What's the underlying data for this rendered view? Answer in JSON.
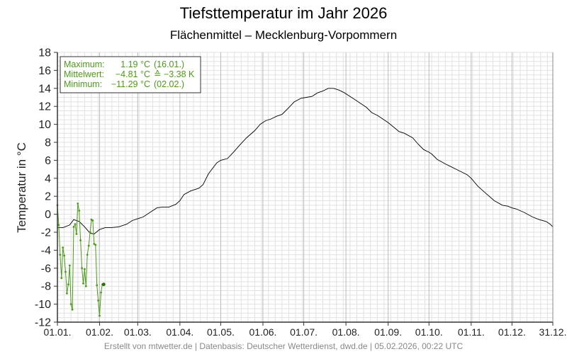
{
  "header": {
    "title": "Tiefsttemperatur im Jahr 2026",
    "subtitle": "Flächenmittel – Mecklenburg-Vorpommern"
  },
  "footer": {
    "text": "Erstellt von mtwetter.de | Datenbasis: Deutscher Wetterdienst, dwd.de | 05.02.2026, 00:22 UTC"
  },
  "stats": {
    "max_label": "Maximum:",
    "max_value": "1.19 °C",
    "max_date": "(16.01.)",
    "mean_label": "Mittelwert:",
    "mean_value": "−4.81 °C",
    "mean_anomaly": "≙ −3.38 K",
    "min_label": "Minimum:",
    "min_value": "−11.29 °C",
    "min_date": "(02.02.)"
  },
  "colors": {
    "series_2026": "#4c9a1a",
    "climatology": "#000000",
    "grid_minor": "#e2e2e2",
    "grid_major": "#bbbbbb"
  },
  "chart_data": {
    "type": "line",
    "title": "Tiefsttemperatur im Jahr 2026",
    "subtitle": "Flächenmittel – Mecklenburg-Vorpommern",
    "ylabel": "Temperatur in °C",
    "xlabel": "",
    "ylim": [
      -12,
      18
    ],
    "yticks": [
      18,
      16,
      14,
      12,
      10,
      8,
      6,
      4,
      2,
      0,
      -2,
      -4,
      -6,
      -8,
      -10,
      -12
    ],
    "xlim": [
      1,
      365
    ],
    "xticks": [
      {
        "day": 1,
        "label": "01.01."
      },
      {
        "day": 32,
        "label": "01.02."
      },
      {
        "day": 60,
        "label": "01.03."
      },
      {
        "day": 91,
        "label": "01.04."
      },
      {
        "day": 121,
        "label": "01.05."
      },
      {
        "day": 152,
        "label": "01.06."
      },
      {
        "day": 182,
        "label": "01.07."
      },
      {
        "day": 213,
        "label": "01.08."
      },
      {
        "day": 244,
        "label": "01.09."
      },
      {
        "day": 274,
        "label": "01.10."
      },
      {
        "day": 305,
        "label": "01.11."
      },
      {
        "day": 335,
        "label": "01.12."
      },
      {
        "day": 365,
        "label": "31.12."
      }
    ],
    "grid": true,
    "legend": "top-left",
    "series": [
      {
        "role": "climatology",
        "x": [
          1,
          5,
          10,
          13,
          17,
          21,
          25,
          28,
          32,
          36,
          40,
          46,
          52,
          56,
          60,
          64,
          70,
          74,
          78,
          83,
          88,
          91,
          94,
          99,
          105,
          108,
          112,
          118,
          121,
          126,
          131,
          135,
          140,
          146,
          150,
          154,
          158,
          162,
          166,
          170,
          175,
          180,
          184,
          188,
          192,
          196,
          200,
          204,
          208,
          212,
          216,
          220,
          224,
          228,
          232,
          236,
          240,
          244,
          248,
          252,
          256,
          262,
          266,
          270,
          274,
          276,
          280,
          286,
          290,
          294,
          298,
          302,
          305,
          310,
          316,
          322,
          328,
          332,
          335,
          338,
          344,
          350,
          355,
          360,
          363,
          365
        ],
        "values": [
          -1.5,
          -1.5,
          -1.2,
          -0.6,
          -0.8,
          -1.4,
          -2.1,
          -2.2,
          -1.7,
          -1.5,
          -1.5,
          -1.4,
          -1.1,
          -0.7,
          -0.5,
          -0.3,
          0.3,
          0.7,
          0.8,
          0.8,
          1.1,
          1.5,
          2.2,
          2.6,
          2.9,
          3.3,
          4.5,
          5.7,
          6.0,
          6.2,
          7.0,
          7.7,
          8.5,
          9.3,
          10.0,
          10.4,
          10.6,
          10.9,
          11.1,
          11.7,
          12.5,
          12.9,
          13.0,
          13.1,
          13.5,
          13.7,
          14.0,
          14.0,
          13.8,
          13.5,
          13.1,
          12.7,
          12.3,
          11.9,
          11.3,
          11.0,
          10.6,
          10.2,
          9.7,
          9.2,
          9.0,
          8.5,
          7.8,
          7.2,
          6.9,
          6.7,
          6.1,
          5.6,
          5.3,
          5.0,
          4.7,
          4.4,
          4.0,
          3.1,
          2.3,
          1.5,
          1.0,
          0.9,
          0.7,
          0.6,
          0.2,
          -0.3,
          -0.6,
          -0.8,
          -1.1,
          -1.4
        ]
      },
      {
        "role": "2026",
        "x": [
          1,
          2,
          3,
          4,
          5,
          6,
          7,
          8,
          9,
          10,
          11,
          12,
          13,
          14,
          15,
          16,
          17,
          18,
          19,
          20,
          21,
          22,
          23,
          24,
          25,
          26,
          27,
          28,
          29,
          30,
          31,
          32,
          33,
          34,
          35
        ],
        "values": [
          1.0,
          -1.2,
          -4.5,
          -7.1,
          -3.7,
          -4.6,
          -6.4,
          -8.8,
          -7.8,
          -5.7,
          -10.0,
          -10.6,
          -1.4,
          -1.1,
          -2.2,
          1.19,
          0.4,
          -2.9,
          -6.0,
          -7.7,
          -6.1,
          -8.0,
          -4.5,
          -3.5,
          -2.0,
          -0.6,
          -0.7,
          -3.3,
          -3.4,
          -7.9,
          -9.6,
          -11.29,
          -8.7,
          -7.8,
          -7.8
        ]
      }
    ]
  }
}
